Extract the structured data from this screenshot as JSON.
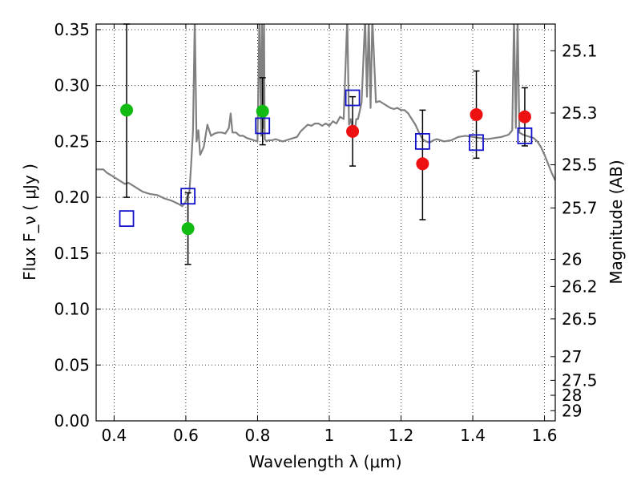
{
  "chart_data": {
    "type": "scatter",
    "xlabel": "Wavelength  λ (μm)",
    "ylabel": "Flux  F_ν  ( μJy )",
    "ylabel_right": "Magnitude (AB)",
    "xlim": [
      0.35,
      1.63
    ],
    "ylim": [
      0.0,
      0.355
    ],
    "grid": true,
    "x_ticks": [
      0.4,
      0.6,
      0.8,
      1.0,
      1.2,
      1.4,
      1.6
    ],
    "x_tick_labels": [
      "0.4",
      "0.6",
      "0.8",
      "1",
      "1.2",
      "1.4",
      "1.6"
    ],
    "y_ticks": [
      0.0,
      0.05,
      0.1,
      0.15,
      0.2,
      0.25,
      0.3,
      0.35
    ],
    "y_tick_labels": [
      "0.00",
      "0.05",
      "0.10",
      "0.15",
      "0.20",
      "0.25",
      "0.30",
      "0.35"
    ],
    "right_ticks": [
      {
        "label": "25.1",
        "flux": 0.3311
      },
      {
        "label": "25.3",
        "flux": 0.2754
      },
      {
        "label": "25.5",
        "flux": 0.2291
      },
      {
        "label": "25.7",
        "flux": 0.1905
      },
      {
        "label": "26",
        "flux": 0.1445
      },
      {
        "label": "26.2",
        "flux": 0.1202
      },
      {
        "label": "26.5",
        "flux": 0.0912
      },
      {
        "label": "27",
        "flux": 0.0575
      },
      {
        "label": "27.5",
        "flux": 0.0363
      },
      {
        "label": "28",
        "flux": 0.0229
      },
      {
        "label": "29",
        "flux": 0.0091
      }
    ],
    "series": [
      {
        "marker": "circle-green",
        "color": "#11bb11",
        "points": [
          {
            "x": 0.435,
            "y": 0.278,
            "err_lo": 0.078,
            "err_hi": 0.077
          },
          {
            "x": 0.606,
            "y": 0.172,
            "err_lo": 0.032,
            "err_hi": 0.032
          },
          {
            "x": 0.814,
            "y": 0.277,
            "err_lo": 0.03,
            "err_hi": 0.03
          }
        ]
      },
      {
        "marker": "circle-red",
        "color": "#ee1111",
        "points": [
          {
            "x": 1.065,
            "y": 0.259,
            "err_lo": 0.031,
            "err_hi": 0.031
          },
          {
            "x": 1.26,
            "y": 0.23,
            "err_lo": 0.05,
            "err_hi": 0.048
          },
          {
            "x": 1.41,
            "y": 0.274,
            "err_lo": 0.039,
            "err_hi": 0.039
          },
          {
            "x": 1.545,
            "y": 0.272,
            "err_lo": 0.026,
            "err_hi": 0.026
          }
        ]
      },
      {
        "marker": "square-open-blue",
        "color": "#1111cc",
        "points": [
          {
            "x": 0.435,
            "y": 0.181
          },
          {
            "x": 0.606,
            "y": 0.201
          },
          {
            "x": 0.814,
            "y": 0.264
          },
          {
            "x": 1.065,
            "y": 0.289
          },
          {
            "x": 1.26,
            "y": 0.25
          },
          {
            "x": 1.41,
            "y": 0.249
          },
          {
            "x": 1.545,
            "y": 0.255
          }
        ]
      },
      {
        "marker": "line",
        "color": "#808080",
        "x": [
          0.35,
          0.37,
          0.38,
          0.39,
          0.4,
          0.41,
          0.42,
          0.43,
          0.44,
          0.45,
          0.46,
          0.47,
          0.48,
          0.5,
          0.52,
          0.54,
          0.56,
          0.58,
          0.59,
          0.6,
          0.603,
          0.607,
          0.61,
          0.615,
          0.62,
          0.625,
          0.63,
          0.635,
          0.64,
          0.65,
          0.66,
          0.67,
          0.68,
          0.69,
          0.7,
          0.71,
          0.72,
          0.725,
          0.73,
          0.74,
          0.75,
          0.76,
          0.77,
          0.78,
          0.79,
          0.8,
          0.805,
          0.81,
          0.812,
          0.815,
          0.818,
          0.82,
          0.825,
          0.83,
          0.84,
          0.85,
          0.86,
          0.87,
          0.88,
          0.89,
          0.9,
          0.91,
          0.92,
          0.93,
          0.94,
          0.95,
          0.96,
          0.97,
          0.98,
          0.99,
          1.0,
          1.01,
          1.02,
          1.03,
          1.04,
          1.05,
          1.055,
          1.06,
          1.065,
          1.07,
          1.075,
          1.08,
          1.09,
          1.1,
          1.105,
          1.11,
          1.115,
          1.12,
          1.13,
          1.14,
          1.15,
          1.16,
          1.17,
          1.18,
          1.19,
          1.2,
          1.21,
          1.22,
          1.23,
          1.24,
          1.25,
          1.26,
          1.27,
          1.28,
          1.29,
          1.3,
          1.32,
          1.34,
          1.36,
          1.38,
          1.4,
          1.42,
          1.44,
          1.46,
          1.48,
          1.5,
          1.51,
          1.515,
          1.52,
          1.525,
          1.53,
          1.54,
          1.55,
          1.56,
          1.57,
          1.58,
          1.59,
          1.6,
          1.61,
          1.62,
          1.63
        ],
        "y": [
          0.225,
          0.225,
          0.222,
          0.22,
          0.218,
          0.216,
          0.214,
          0.212,
          0.213,
          0.211,
          0.209,
          0.207,
          0.205,
          0.203,
          0.202,
          0.199,
          0.197,
          0.194,
          0.192,
          0.196,
          0.2,
          0.202,
          0.205,
          0.23,
          0.26,
          0.36,
          0.25,
          0.26,
          0.238,
          0.245,
          0.265,
          0.255,
          0.257,
          0.258,
          0.258,
          0.257,
          0.262,
          0.275,
          0.258,
          0.258,
          0.255,
          0.255,
          0.253,
          0.252,
          0.251,
          0.25,
          0.36,
          0.255,
          0.36,
          0.262,
          0.36,
          0.252,
          0.25,
          0.251,
          0.251,
          0.252,
          0.251,
          0.25,
          0.251,
          0.252,
          0.253,
          0.254,
          0.259,
          0.262,
          0.265,
          0.264,
          0.266,
          0.266,
          0.264,
          0.266,
          0.264,
          0.268,
          0.266,
          0.272,
          0.27,
          0.36,
          0.265,
          0.27,
          0.26,
          0.255,
          0.27,
          0.27,
          0.285,
          0.36,
          0.29,
          0.36,
          0.28,
          0.36,
          0.285,
          0.286,
          0.284,
          0.282,
          0.28,
          0.279,
          0.28,
          0.278,
          0.278,
          0.275,
          0.27,
          0.265,
          0.258,
          0.252,
          0.25,
          0.249,
          0.251,
          0.252,
          0.25,
          0.251,
          0.254,
          0.255,
          0.254,
          0.253,
          0.252,
          0.253,
          0.254,
          0.256,
          0.26,
          0.36,
          0.262,
          0.36,
          0.258,
          0.256,
          0.255,
          0.254,
          0.253,
          0.25,
          0.245,
          0.238,
          0.23,
          0.222,
          0.215
        ]
      }
    ]
  }
}
